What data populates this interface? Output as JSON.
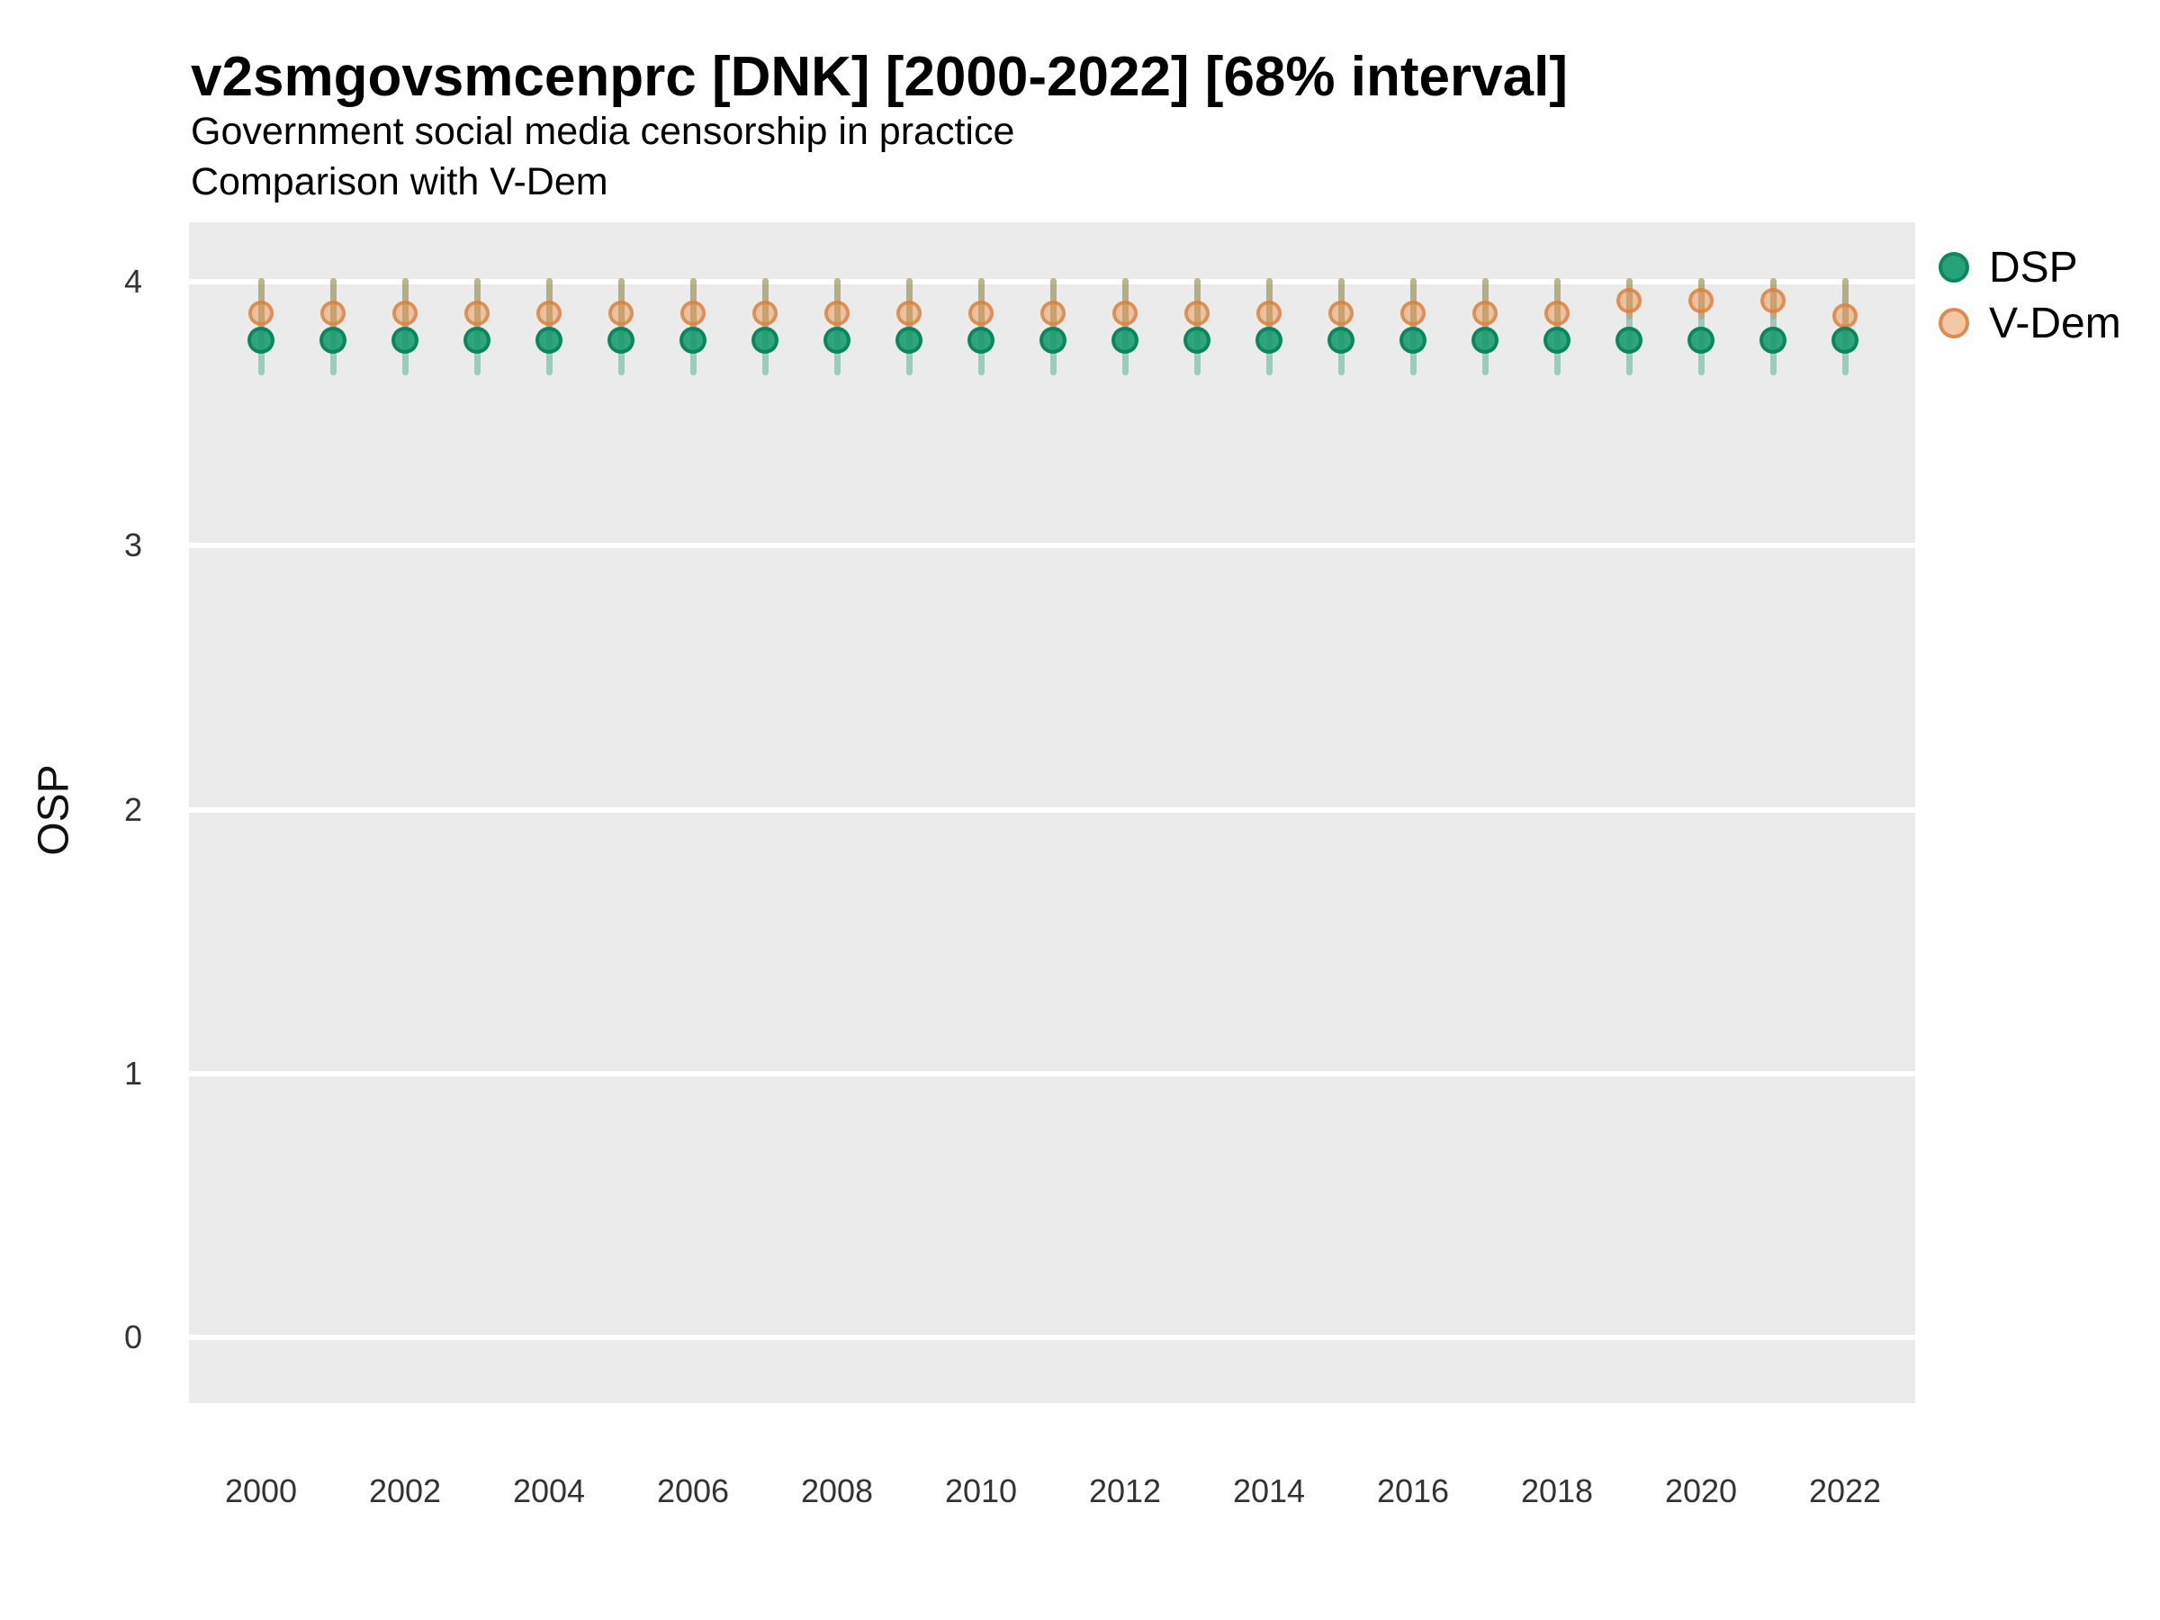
{
  "chart_data": {
    "type": "scatter",
    "title": "v2smgovsmcenprc [DNK] [2000-2022] [68% interval]",
    "subtitle": "Government social media censorship in practice",
    "subtitle2": "Comparison with V-Dem",
    "xlabel": "",
    "ylabel": "OSP",
    "interval": "68%",
    "country": "DNK",
    "ylim": [
      -0.25,
      4.23
    ],
    "y_ticks": [
      4,
      3,
      2,
      1,
      0
    ],
    "x_ticks": [
      2000,
      2002,
      2004,
      2006,
      2008,
      2010,
      2012,
      2014,
      2016,
      2018,
      2020,
      2022
    ],
    "grid": "white major horizontal gridlines on gray panel",
    "legend_position": "right",
    "x": [
      2000,
      2001,
      2002,
      2003,
      2004,
      2005,
      2006,
      2007,
      2008,
      2009,
      2010,
      2011,
      2012,
      2013,
      2014,
      2015,
      2016,
      2017,
      2018,
      2019,
      2020,
      2021,
      2022
    ],
    "series": [
      {
        "name": "DSP",
        "color": "#1b9e77",
        "values": [
          3.78,
          3.78,
          3.78,
          3.78,
          3.78,
          3.78,
          3.78,
          3.78,
          3.78,
          3.78,
          3.78,
          3.78,
          3.78,
          3.78,
          3.78,
          3.78,
          3.78,
          3.78,
          3.78,
          3.78,
          3.78,
          3.78,
          3.78
        ],
        "low": [
          3.66,
          3.66,
          3.66,
          3.66,
          3.66,
          3.66,
          3.66,
          3.66,
          3.66,
          3.66,
          3.66,
          3.66,
          3.66,
          3.66,
          3.66,
          3.66,
          3.66,
          3.66,
          3.66,
          3.66,
          3.66,
          3.66,
          3.66
        ],
        "high": [
          4.0,
          4.0,
          4.0,
          4.0,
          4.0,
          4.0,
          4.0,
          4.0,
          4.0,
          4.0,
          4.0,
          4.0,
          4.0,
          4.0,
          4.0,
          4.0,
          4.0,
          4.0,
          4.0,
          4.0,
          4.0,
          4.0,
          4.0
        ]
      },
      {
        "name": "V-Dem",
        "color": "#e7914a",
        "values": [
          3.88,
          3.88,
          3.88,
          3.88,
          3.88,
          3.88,
          3.88,
          3.88,
          3.88,
          3.88,
          3.88,
          3.88,
          3.88,
          3.88,
          3.88,
          3.88,
          3.88,
          3.88,
          3.88,
          3.93,
          3.93,
          3.93,
          3.87
        ],
        "low": [
          3.82,
          3.82,
          3.82,
          3.82,
          3.82,
          3.82,
          3.82,
          3.82,
          3.82,
          3.82,
          3.82,
          3.82,
          3.82,
          3.82,
          3.82,
          3.82,
          3.82,
          3.82,
          3.82,
          3.87,
          3.87,
          3.87,
          3.81
        ],
        "high": [
          4.0,
          4.0,
          4.0,
          4.0,
          4.0,
          4.0,
          4.0,
          4.0,
          4.0,
          4.0,
          4.0,
          4.0,
          4.0,
          4.0,
          4.0,
          4.0,
          4.0,
          4.0,
          4.0,
          4.0,
          4.0,
          4.0,
          4.0
        ]
      }
    ]
  },
  "colors": {
    "panel_background": "#ebebeb",
    "gridline": "#ffffff",
    "dsp_green": "#1b9e77",
    "vdem_orange": "#e7914a",
    "text": "#000000"
  }
}
